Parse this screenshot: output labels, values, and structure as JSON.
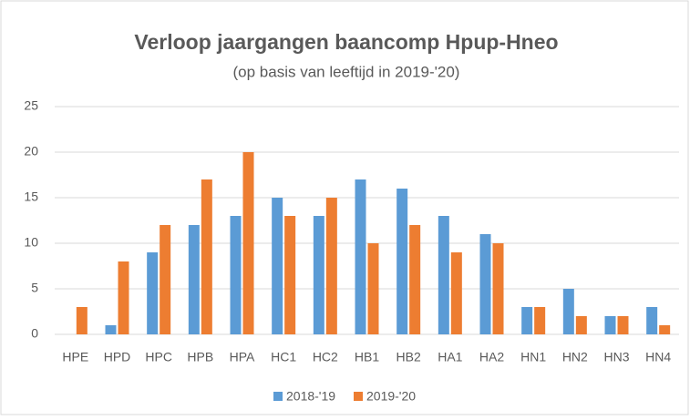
{
  "chart_data": {
    "type": "bar",
    "title": "Verloop jaargangen baancomp Hpup-Hneo",
    "subtitle": "(op basis van leeftijd in 2019-'20)",
    "categories": [
      "HPE",
      "HPD",
      "HPC",
      "HPB",
      "HPA",
      "HC1",
      "HC2",
      "HB1",
      "HB2",
      "HA1",
      "HA2",
      "HN1",
      "HN2",
      "HN3",
      "HN4"
    ],
    "series": [
      {
        "name": "2018-'19",
        "color": "#5b9bd5",
        "values": [
          0,
          1,
          9,
          12,
          13,
          15,
          13,
          17,
          16,
          13,
          11,
          3,
          5,
          2,
          3
        ]
      },
      {
        "name": "2019-'20",
        "color": "#ed7d31",
        "values": [
          3,
          8,
          12,
          17,
          20,
          13,
          15,
          10,
          12,
          9,
          10,
          3,
          2,
          2,
          1
        ]
      }
    ],
    "ylim": [
      0,
      25
    ],
    "yticks": [
      0,
      5,
      10,
      15,
      20,
      25
    ],
    "grid": true,
    "legend": "bottom"
  }
}
